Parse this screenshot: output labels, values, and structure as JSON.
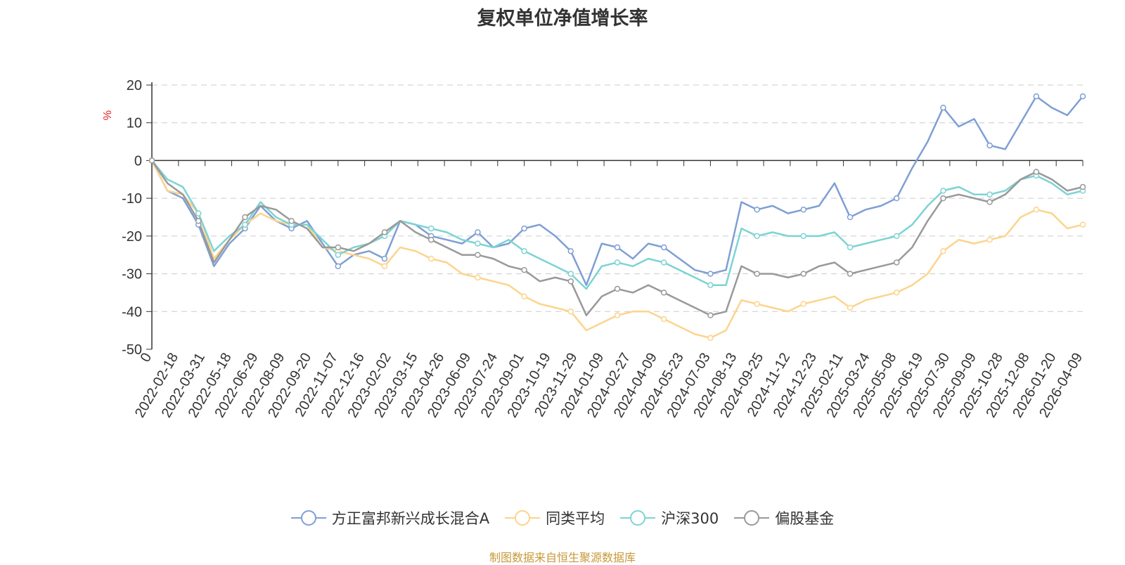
{
  "chart_data": {
    "type": "line",
    "title": "复权单位净值增长率",
    "ylabel": "%",
    "xlabel": "",
    "ylim": [
      -50,
      20
    ],
    "yticks": [
      20,
      10,
      0,
      -10,
      -20,
      -30,
      -40,
      -50
    ],
    "grid": true,
    "legend_position": "bottom",
    "source_note": "制图数据来自恒生聚源数据库",
    "x_tick_labels": [
      "0",
      "2022-02-18",
      "2022-03-31",
      "2022-05-18",
      "2022-06-29",
      "2022-08-09",
      "2022-09-20",
      "2022-11-07",
      "2022-12-16",
      "2023-02-02",
      "2023-03-15",
      "2023-04-26",
      "2023-06-09",
      "2023-07-24",
      "2023-09-01",
      "2023-10-19",
      "2023-11-29",
      "2024-01-09",
      "2024-02-27",
      "2024-04-09",
      "2024-05-23",
      "2024-07-03",
      "2024-08-13",
      "2024-09-25",
      "2024-11-12",
      "2024-12-23",
      "2025-02-11",
      "2025-03-24",
      "2025-05-08",
      "2025-06-19",
      "2025-07-30",
      "2025-09-09",
      "2025-10-28",
      "2025-12-08",
      "2026-01-20",
      "2026-04-09"
    ],
    "series": [
      {
        "name": "方正富邦新兴成长混合A",
        "color": "#7f9fd4",
        "values": [
          0,
          -8,
          -10,
          -17,
          -28,
          -22,
          -18,
          -12,
          -16,
          -18,
          -16,
          -22,
          -28,
          -25,
          -24,
          -26,
          -16,
          -17,
          -20,
          -21,
          -22,
          -19,
          -23,
          -22,
          -18,
          -17,
          -20,
          -24,
          -33,
          -22,
          -23,
          -26,
          -22,
          -23,
          -26,
          -29,
          -30,
          -29,
          -11,
          -13,
          -12,
          -14,
          -13,
          -12,
          -6,
          -15,
          -13,
          -12,
          -10,
          -2,
          5,
          14,
          9,
          11,
          4,
          3,
          10,
          17,
          14,
          12,
          17
        ]
      },
      {
        "name": "同类平均",
        "color": "#fcd48c",
        "values": [
          0,
          -8,
          -9,
          -14,
          -26,
          -21,
          -17,
          -14,
          -16,
          -17,
          -17,
          -23,
          -24,
          -25,
          -26,
          -28,
          -23,
          -24,
          -26,
          -27,
          -30,
          -31,
          -32,
          -33,
          -36,
          -38,
          -39,
          -40,
          -45,
          -43,
          -41,
          -40,
          -40,
          -42,
          -44,
          -46,
          -47,
          -45,
          -37,
          -38,
          -39,
          -40,
          -38,
          -37,
          -36,
          -39,
          -37,
          -36,
          -35,
          -33,
          -30,
          -24,
          -21,
          -22,
          -21,
          -20,
          -15,
          -13,
          -14,
          -18,
          -17
        ]
      },
      {
        "name": "沪深300",
        "color": "#7dd3d4",
        "values": [
          0,
          -5,
          -7,
          -14,
          -24,
          -20,
          -17,
          -11,
          -15,
          -17,
          -17,
          -21,
          -25,
          -23,
          -22,
          -20,
          -16,
          -17,
          -18,
          -19,
          -21,
          -22,
          -23,
          -21,
          -24,
          -26,
          -28,
          -30,
          -34,
          -28,
          -27,
          -28,
          -26,
          -27,
          -29,
          -31,
          -33,
          -33,
          -18,
          -20,
          -19,
          -20,
          -20,
          -20,
          -19,
          -23,
          -22,
          -21,
          -20,
          -17,
          -12,
          -8,
          -7,
          -9,
          -9,
          -8,
          -5,
          -4,
          -6,
          -9,
          -8
        ]
      },
      {
        "name": "偏股基金",
        "color": "#999999",
        "values": [
          0,
          -6,
          -9,
          -16,
          -27,
          -21,
          -15,
          -12,
          -13,
          -16,
          -18,
          -23,
          -23,
          -24,
          -22,
          -19,
          -16,
          -19,
          -21,
          -23,
          -25,
          -25,
          -26,
          -28,
          -29,
          -32,
          -31,
          -32,
          -41,
          -36,
          -34,
          -35,
          -33,
          -35,
          -37,
          -39,
          -41,
          -40,
          -28,
          -30,
          -30,
          -31,
          -30,
          -28,
          -27,
          -30,
          -29,
          -28,
          -27,
          -23,
          -16,
          -10,
          -9,
          -10,
          -11,
          -9,
          -5,
          -3,
          -5,
          -8,
          -7
        ]
      }
    ]
  }
}
